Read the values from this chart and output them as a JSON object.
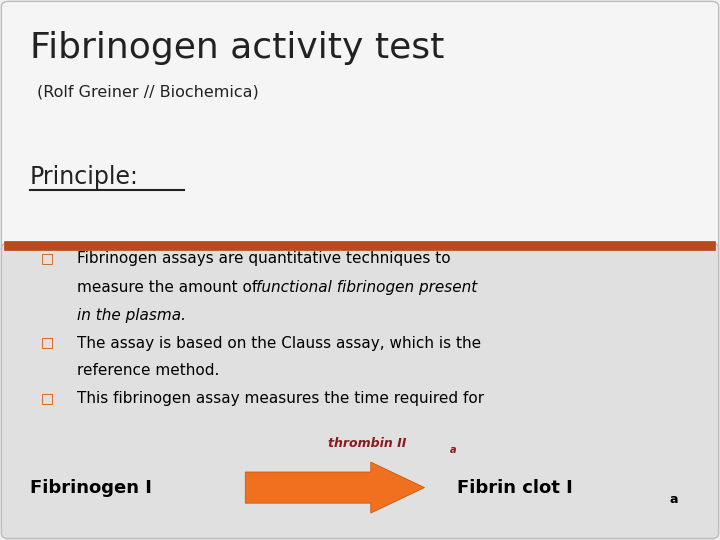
{
  "title": "Fibrinogen activity test",
  "subtitle": "(Rolf Greiner // Biochemica)",
  "principle_label": "Principle:",
  "bullet_color": "#CC5500",
  "bullet2": "The assay is based on the Clauss assay, which is the\nreference method.",
  "bullet3": "This fibrinogen assay measures the time required for",
  "divider_color": "#B84A1E",
  "bg_color": "#F0F0F0",
  "title_color": "#222222",
  "top_bg": "#F5F5F5",
  "body_bg": "#E0E0E0",
  "arrow_color": "#F07020",
  "arrow_label_color": "#8B1A1A",
  "left_label": "Fibrinogen I",
  "right_label": "Fibrin clot I",
  "right_subscript": "a"
}
